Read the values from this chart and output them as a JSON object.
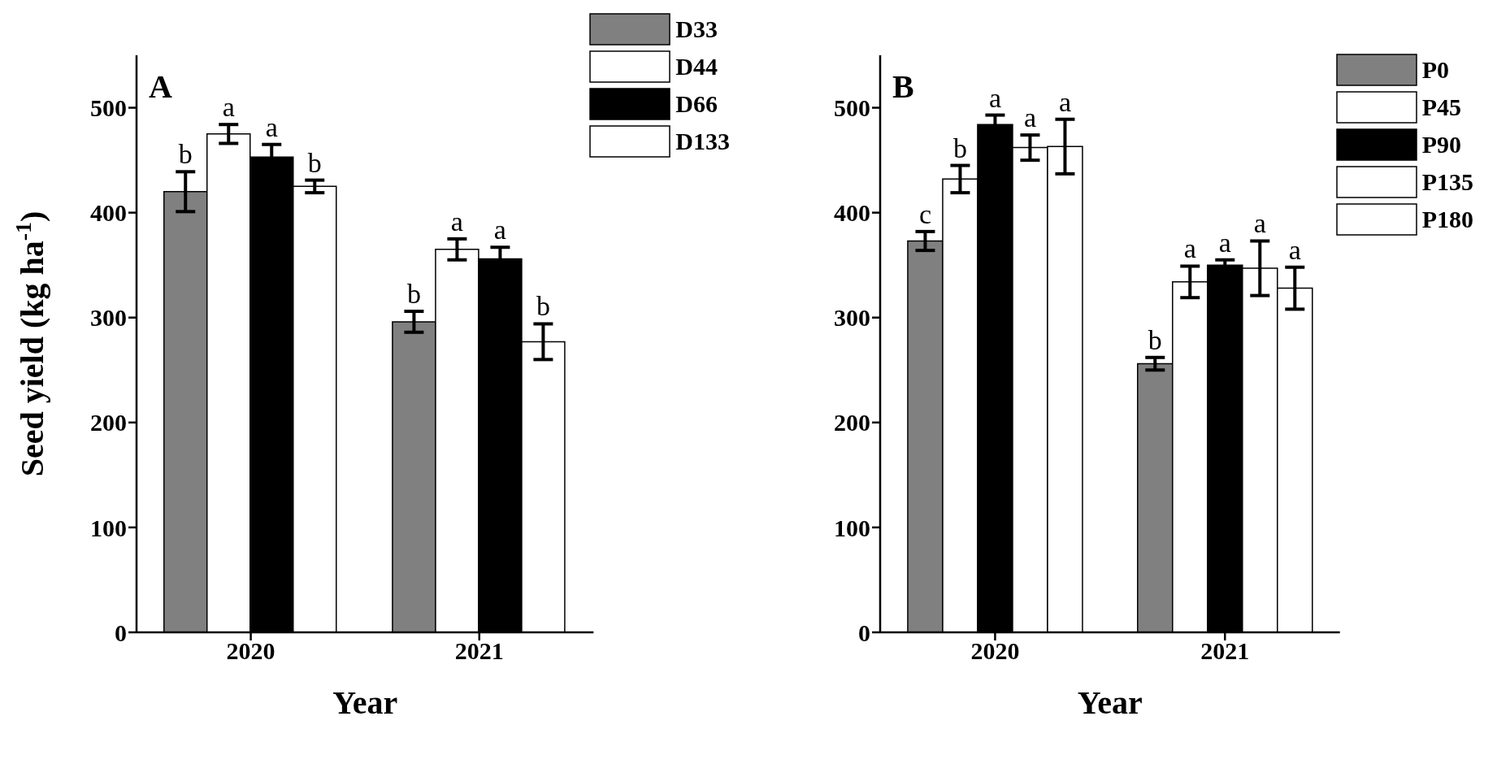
{
  "chart_data": [
    {
      "type": "bar",
      "title": "A",
      "xlabel": "Year",
      "ylabel": "Seed yield (kg ha$^{-1}$)",
      "categories": [
        "2020",
        "2021"
      ],
      "ylim": [
        0,
        550
      ],
      "yticks": [
        0,
        100,
        200,
        300,
        400,
        500
      ],
      "grid": false,
      "legend": "top right",
      "series": [
        {
          "name": "D33",
          "color": "#808080",
          "values": [
            420,
            296
          ],
          "errors": [
            19,
            10
          ],
          "value_labels": [
            "b",
            "b"
          ]
        },
        {
          "name": "D44",
          "color": "#ffffff",
          "values": [
            475,
            365
          ],
          "errors": [
            9,
            10
          ],
          "value_labels": [
            "a",
            "a"
          ]
        },
        {
          "name": "D66",
          "color": "#000000",
          "values": [
            453,
            356
          ],
          "errors": [
            12,
            11
          ],
          "value_labels": [
            "a",
            "a"
          ]
        },
        {
          "name": "D133",
          "color": "#ffffff",
          "values": [
            425,
            277
          ],
          "errors": [
            6,
            17
          ],
          "value_labels": [
            "b",
            "b"
          ]
        }
      ]
    },
    {
      "type": "bar",
      "title": "B",
      "xlabel": "Year",
      "categories": [
        "2020",
        "2021"
      ],
      "ylim": [
        0,
        550
      ],
      "yticks": [
        0,
        100,
        200,
        300,
        400,
        500
      ],
      "grid": false,
      "legend": "top right",
      "series": [
        {
          "name": "P0",
          "color": "#808080",
          "values": [
            373,
            256
          ],
          "errors": [
            9,
            6
          ],
          "value_labels": [
            "c",
            "b"
          ]
        },
        {
          "name": "P45",
          "color": "#ffffff",
          "values": [
            432,
            334
          ],
          "errors": [
            13,
            15
          ],
          "value_labels": [
            "b",
            "a"
          ]
        },
        {
          "name": "P90",
          "color": "#000000",
          "values": [
            484,
            350
          ],
          "errors": [
            9,
            5
          ],
          "value_labels": [
            "a",
            "a"
          ]
        },
        {
          "name": "P135",
          "color": "#ffffff",
          "values": [
            462,
            347
          ],
          "errors": [
            12,
            26
          ],
          "value_labels": [
            "a",
            "a"
          ]
        },
        {
          "name": "P180",
          "color": "#ffffff",
          "values": [
            463,
            328
          ],
          "errors": [
            26,
            20
          ],
          "value_labels": [
            "a",
            "a"
          ]
        }
      ]
    }
  ]
}
